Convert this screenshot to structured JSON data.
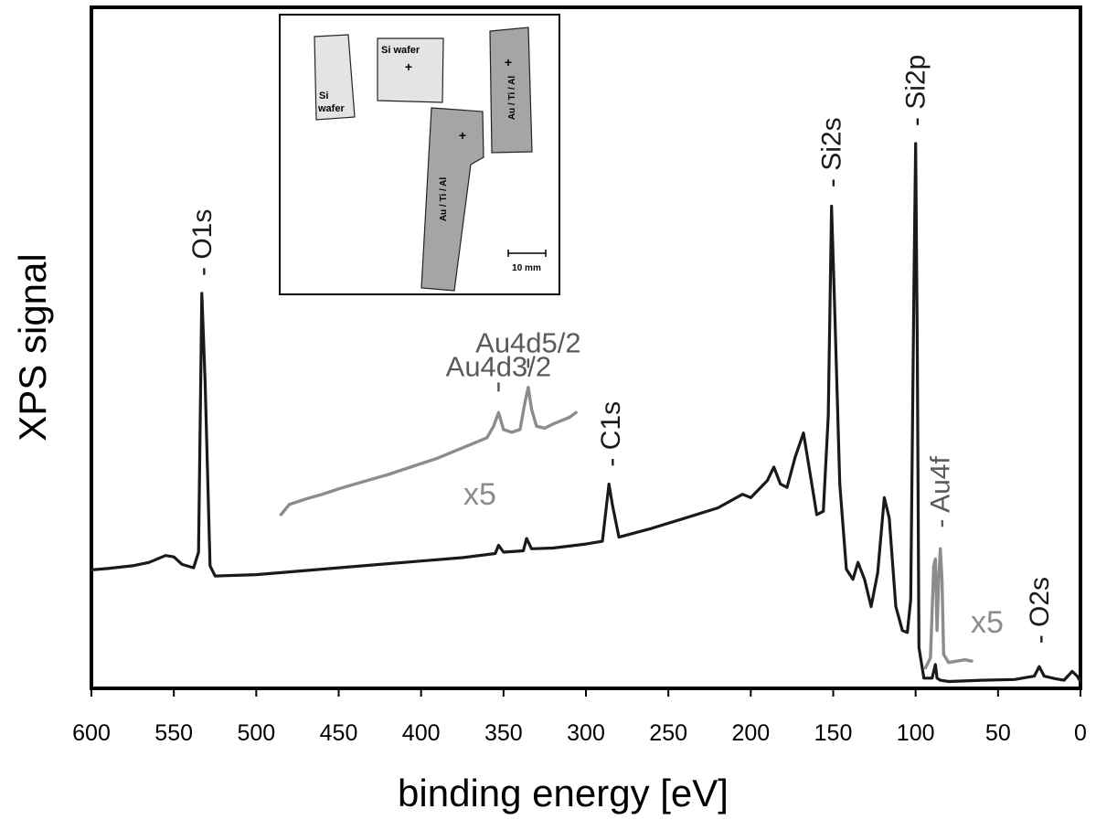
{
  "chart_data": {
    "type": "line",
    "xlabel": "binding energy [eV]",
    "ylabel": "XPS signal",
    "xlim": [
      600,
      0
    ],
    "x_reversed": true,
    "y_ticks_shown": false,
    "x_ticks": [
      600,
      550,
      500,
      450,
      400,
      350,
      300,
      250,
      200,
      150,
      100,
      50,
      0
    ],
    "grid": false,
    "colors": {
      "main": "#1a1a1a",
      "magnified": "#8c8c8c",
      "axes": "#000000",
      "annotation": "#5a5a5a"
    },
    "series": [
      {
        "role": "main",
        "points": [
          [
            600,
            0.174
          ],
          [
            590,
            0.176
          ],
          [
            575,
            0.18
          ],
          [
            565,
            0.185
          ],
          [
            555,
            0.195
          ],
          [
            550,
            0.193
          ],
          [
            545,
            0.182
          ],
          [
            538,
            0.177
          ],
          [
            535,
            0.2
          ],
          [
            533,
            0.58
          ],
          [
            531,
            0.45
          ],
          [
            528,
            0.18
          ],
          [
            525,
            0.165
          ],
          [
            500,
            0.167
          ],
          [
            475,
            0.172
          ],
          [
            450,
            0.177
          ],
          [
            425,
            0.182
          ],
          [
            400,
            0.187
          ],
          [
            375,
            0.192
          ],
          [
            355,
            0.198
          ],
          [
            353,
            0.21
          ],
          [
            350,
            0.2
          ],
          [
            338,
            0.202
          ],
          [
            336,
            0.22
          ],
          [
            333,
            0.205
          ],
          [
            320,
            0.206
          ],
          [
            300,
            0.212
          ],
          [
            290,
            0.216
          ],
          [
            286,
            0.3
          ],
          [
            284,
            0.27
          ],
          [
            280,
            0.222
          ],
          [
            260,
            0.235
          ],
          [
            240,
            0.25
          ],
          [
            220,
            0.265
          ],
          [
            205,
            0.285
          ],
          [
            200,
            0.28
          ],
          [
            190,
            0.305
          ],
          [
            186,
            0.325
          ],
          [
            182,
            0.3
          ],
          [
            178,
            0.295
          ],
          [
            173,
            0.34
          ],
          [
            168,
            0.375
          ],
          [
            163,
            0.3
          ],
          [
            160,
            0.255
          ],
          [
            156,
            0.26
          ],
          [
            153,
            0.4
          ],
          [
            151,
            0.708
          ],
          [
            149,
            0.55
          ],
          [
            146,
            0.3
          ],
          [
            142,
            0.175
          ],
          [
            138,
            0.16
          ],
          [
            135,
            0.185
          ],
          [
            131,
            0.16
          ],
          [
            127,
            0.12
          ],
          [
            123,
            0.17
          ],
          [
            119,
            0.28
          ],
          [
            116,
            0.25
          ],
          [
            112,
            0.12
          ],
          [
            108,
            0.085
          ],
          [
            105,
            0.082
          ],
          [
            103,
            0.13
          ],
          [
            101,
            0.6
          ],
          [
            100,
            0.8
          ],
          [
            99,
            0.5
          ],
          [
            98,
            0.06
          ],
          [
            95,
            0.015
          ],
          [
            90,
            0.015
          ],
          [
            88,
            0.035
          ],
          [
            87,
            0.015
          ],
          [
            85,
            0.012
          ],
          [
            80,
            0.01
          ],
          [
            60,
            0.012
          ],
          [
            40,
            0.013
          ],
          [
            28,
            0.018
          ],
          [
            25,
            0.032
          ],
          [
            22,
            0.018
          ],
          [
            15,
            0.014
          ],
          [
            10,
            0.012
          ],
          [
            5,
            0.025
          ],
          [
            2,
            0.018
          ],
          [
            0,
            0.01
          ]
        ]
      },
      {
        "role": "magnified",
        "label": "x5",
        "points": [
          [
            485,
            0.255
          ],
          [
            480,
            0.27
          ],
          [
            470,
            0.278
          ],
          [
            460,
            0.285
          ],
          [
            450,
            0.293
          ],
          [
            440,
            0.3
          ],
          [
            430,
            0.307
          ],
          [
            420,
            0.314
          ],
          [
            410,
            0.322
          ],
          [
            400,
            0.33
          ],
          [
            390,
            0.338
          ],
          [
            380,
            0.348
          ],
          [
            370,
            0.358
          ],
          [
            360,
            0.368
          ],
          [
            356,
            0.385
          ],
          [
            353,
            0.405
          ],
          [
            350,
            0.38
          ],
          [
            345,
            0.376
          ],
          [
            340,
            0.38
          ],
          [
            337,
            0.42
          ],
          [
            335,
            0.442
          ],
          [
            333,
            0.41
          ],
          [
            330,
            0.385
          ],
          [
            325,
            0.382
          ],
          [
            320,
            0.388
          ],
          [
            315,
            0.393
          ],
          [
            310,
            0.398
          ],
          [
            306,
            0.405
          ]
        ]
      },
      {
        "role": "magnified",
        "label": "x5",
        "points": [
          [
            94,
            0.03
          ],
          [
            91,
            0.045
          ],
          [
            89,
            0.18
          ],
          [
            88,
            0.19
          ],
          [
            87,
            0.085
          ],
          [
            86,
            0.16
          ],
          [
            85,
            0.205
          ],
          [
            84,
            0.16
          ],
          [
            83,
            0.05
          ],
          [
            80,
            0.038
          ],
          [
            75,
            0.04
          ],
          [
            70,
            0.042
          ],
          [
            66,
            0.04
          ]
        ]
      }
    ],
    "annotations": [
      {
        "text": "O1s",
        "x": 533,
        "y": 0.6,
        "color": "main"
      },
      {
        "text": "C1s",
        "x": 285,
        "y": 0.32,
        "color": "main"
      },
      {
        "text": "Si2s",
        "x": 151,
        "y": 0.73,
        "color": "main"
      },
      {
        "text": "Si2p",
        "x": 100,
        "y": 0.82,
        "color": "main"
      },
      {
        "text": "O2s",
        "x": 25,
        "y": 0.06,
        "color": "main"
      },
      {
        "text": "Au4f",
        "x": 85,
        "y": 0.23,
        "color": "magnified"
      },
      {
        "text": "Au4d3/2",
        "x": 353,
        "y": 0.425,
        "color": "magnified"
      },
      {
        "text": "Au4d5/2",
        "x": 335,
        "y": 0.46,
        "color": "magnified"
      }
    ],
    "inset": {
      "samples": [
        {
          "label_line1": "Si",
          "label_line2": "wafer"
        },
        {
          "label_line1": "Si wafer"
        },
        {
          "label_line1": "Au / Ti / Al"
        },
        {
          "label_line1": "Au / Ti / Al"
        }
      ],
      "scalebar_label": "10 mm"
    }
  }
}
